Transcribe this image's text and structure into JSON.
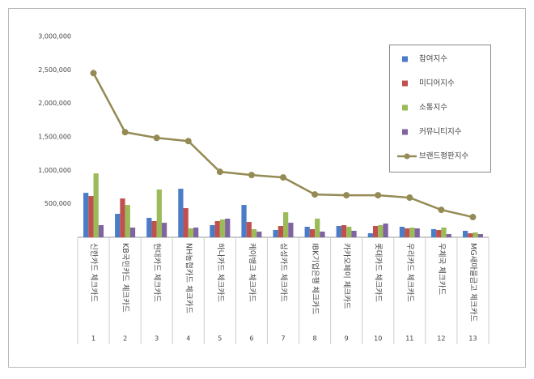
{
  "chart_data": {
    "type": "bar-line",
    "categories": [
      "신한카드 체크카드",
      "KB국민카드 체크카드",
      "현대카드 체크카드",
      "NH농협카드 체크카드",
      "하나카드 체크카드",
      "케이뱅크 체크카드",
      "삼성카드 체크카드",
      "IBK기업은행 체크카드",
      "카카오페이 체크카드",
      "롯데카드 체크카드",
      "우리카드 체크카드",
      "우체국 체크카드",
      "MG새마을금고 체크카드"
    ],
    "category_ranks": [
      1,
      2,
      3,
      4,
      5,
      6,
      7,
      8,
      9,
      10,
      11,
      12,
      13
    ],
    "series": [
      {
        "name": "참여지수",
        "color": "#4a7cc7",
        "type": "bar",
        "values": [
          664000,
          350000,
          290000,
          725000,
          181000,
          483000,
          109000,
          157000,
          169000,
          60000,
          157000,
          121000,
          97000
        ]
      },
      {
        "name": "미디어지수",
        "color": "#c0504d",
        "type": "bar",
        "values": [
          616000,
          580000,
          242000,
          435000,
          242000,
          229000,
          169000,
          121000,
          181000,
          169000,
          133000,
          109000,
          60000
        ]
      },
      {
        "name": "소통지수",
        "color": "#9bbb59",
        "type": "bar",
        "values": [
          954000,
          483000,
          713000,
          133000,
          266000,
          121000,
          374000,
          278000,
          157000,
          181000,
          145000,
          145000,
          72000
        ]
      },
      {
        "name": "커뮤니티지수",
        "color": "#8064a2",
        "type": "bar",
        "values": [
          181000,
          145000,
          217000,
          145000,
          278000,
          85000,
          217000,
          85000,
          97000,
          205000,
          133000,
          48000,
          48000
        ]
      },
      {
        "name": "브랜드평판지수",
        "color": "#948a54",
        "type": "line",
        "values": [
          2452000,
          1570000,
          1485000,
          1437000,
          978000,
          930000,
          894000,
          640000,
          628000,
          628000,
          592000,
          410000,
          302000
        ]
      }
    ],
    "ylim": [
      0,
      3000000
    ],
    "yticks": [
      {
        "value": 500000,
        "label": "500,000"
      },
      {
        "value": 1000000,
        "label": "1,000,000"
      },
      {
        "value": 1500000,
        "label": "1,500,000"
      },
      {
        "value": 2000000,
        "label": "2,000,000"
      },
      {
        "value": 2500000,
        "label": "2,500,000"
      },
      {
        "value": 3000000,
        "label": "3,000,000"
      }
    ],
    "grid": false,
    "legend": "upper right"
  }
}
